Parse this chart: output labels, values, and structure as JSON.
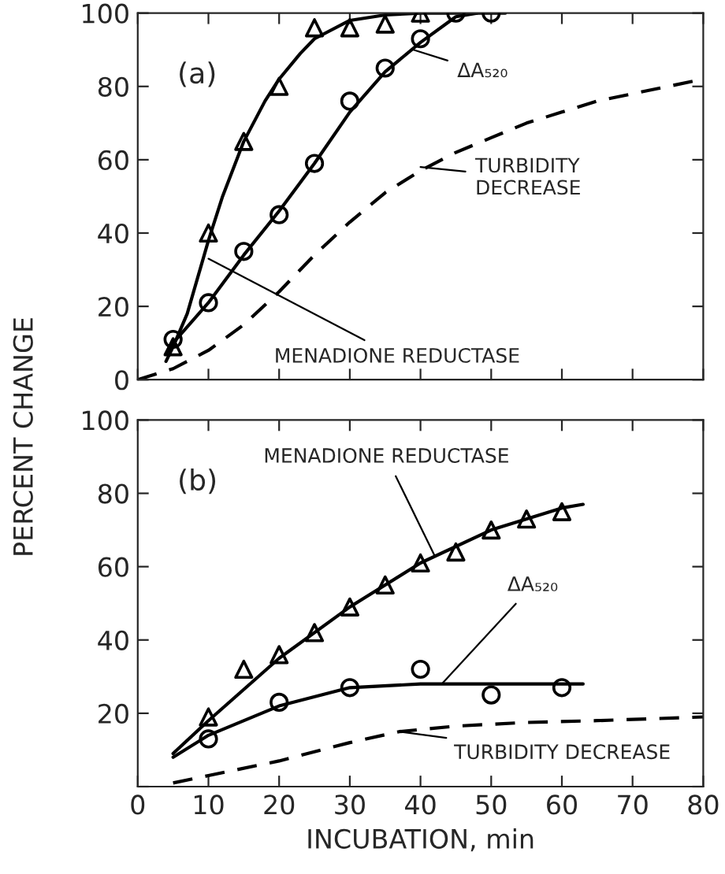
{
  "chart_data": [
    {
      "type": "line",
      "ylabel": "PERCENT CHANGE",
      "xlim": [
        0,
        80
      ],
      "ylim": [
        0,
        100
      ],
      "xticks": [
        0,
        10,
        20,
        30,
        40,
        50,
        60,
        70,
        80
      ],
      "yticks": [
        0,
        20,
        40,
        60,
        80,
        100
      ],
      "tick_labels": "y",
      "grid": false,
      "legend": false,
      "annotations": [
        "(a)",
        {
          "text": "ΔA₅₂₀",
          "x": 39,
          "y": 90
        },
        {
          "text": "TURBIDITY\nDECREASE",
          "x": 40,
          "y": 58
        },
        {
          "text": "MENADIONE REDUCTASE",
          "x": 10,
          "y": 33
        }
      ],
      "series": [
        {
          "type": "scatter",
          "marker": "triangle",
          "color": "#000000",
          "x": [
            5,
            10,
            15,
            20,
            25,
            30,
            35,
            40
          ],
          "values": [
            9,
            40,
            65,
            80,
            96,
            96,
            97,
            100
          ]
        },
        {
          "type": "line",
          "marker": "none",
          "line_style": "solid",
          "color": "#000000",
          "x": [
            4,
            5,
            7,
            10,
            12,
            15,
            18,
            20,
            23,
            25,
            30,
            35,
            40,
            48
          ],
          "values": [
            5,
            9,
            18,
            38,
            50,
            65,
            76,
            82,
            89,
            93,
            98,
            99.5,
            100,
            100
          ]
        },
        {
          "type": "scatter",
          "marker": "circle",
          "color": "#000000",
          "x": [
            5,
            10,
            15,
            20,
            25,
            30,
            35,
            40,
            45,
            50
          ],
          "values": [
            11,
            21,
            35,
            45,
            59,
            76,
            85,
            93,
            100,
            100
          ]
        },
        {
          "type": "line",
          "marker": "none",
          "line_style": "solid",
          "color": "#000000",
          "x": [
            4,
            5,
            10,
            15,
            20,
            25,
            30,
            35,
            40,
            45,
            48,
            52
          ],
          "values": [
            7,
            10,
            21,
            34,
            46,
            59,
            73,
            84,
            92,
            99,
            100,
            100
          ]
        },
        {
          "type": "line",
          "marker": "none",
          "line_style": "dashed",
          "color": "#000000",
          "x": [
            0,
            5,
            10,
            15,
            20,
            25,
            30,
            35,
            40,
            45,
            50,
            55,
            60,
            65,
            70,
            75,
            80
          ],
          "values": [
            0,
            3,
            8,
            15,
            24,
            34,
            43,
            51,
            57,
            62,
            66,
            70,
            73,
            76,
            78,
            80,
            82
          ]
        }
      ]
    },
    {
      "type": "line",
      "xlabel": "INCUBATION, min",
      "xlim": [
        0,
        80
      ],
      "ylim": [
        0,
        100
      ],
      "xticks": [
        0,
        10,
        20,
        30,
        40,
        50,
        60,
        70,
        80
      ],
      "yticks": [
        {
          "value": 0,
          "label": null
        },
        20,
        40,
        60,
        80,
        100
      ],
      "grid": false,
      "legend": false,
      "annotations": [
        "(b)",
        {
          "text": "MENADIONE REDUCTASE",
          "x": 42,
          "y": 63
        },
        {
          "text": "ΔA₅₂₀",
          "x": 43,
          "y": 28
        },
        {
          "text": "TURBIDITY DECREASE",
          "x": 37,
          "y": 15
        }
      ],
      "series": [
        {
          "type": "scatter",
          "marker": "triangle",
          "color": "#000000",
          "x": [
            10,
            15,
            20,
            25,
            30,
            35,
            40,
            45,
            50,
            55,
            60
          ],
          "values": [
            19,
            32,
            36,
            42,
            49,
            55,
            61,
            64,
            70,
            73,
            75
          ]
        },
        {
          "type": "line",
          "marker": "none",
          "line_style": "solid",
          "color": "#000000",
          "x": [
            5,
            10,
            20,
            30,
            40,
            50,
            60,
            63
          ],
          "values": [
            9,
            18,
            35,
            49,
            61,
            70,
            76,
            77
          ]
        },
        {
          "type": "scatter",
          "marker": "circle",
          "color": "#000000",
          "x": [
            10,
            20,
            30,
            40,
            50,
            60
          ],
          "values": [
            13,
            23,
            27,
            32,
            25,
            27
          ]
        },
        {
          "type": "line",
          "marker": "none",
          "line_style": "solid",
          "color": "#000000",
          "x": [
            5,
            10,
            20,
            30,
            40,
            50,
            60,
            63
          ],
          "values": [
            8,
            14,
            22,
            27,
            28,
            28,
            28,
            28
          ]
        },
        {
          "type": "line",
          "marker": "none",
          "line_style": "dashed",
          "color": "#000000",
          "x": [
            5,
            10,
            20,
            30,
            37,
            45,
            55,
            65,
            80
          ],
          "values": [
            1,
            3,
            7,
            12,
            15,
            16.5,
            17.5,
            18,
            19
          ]
        }
      ]
    }
  ]
}
